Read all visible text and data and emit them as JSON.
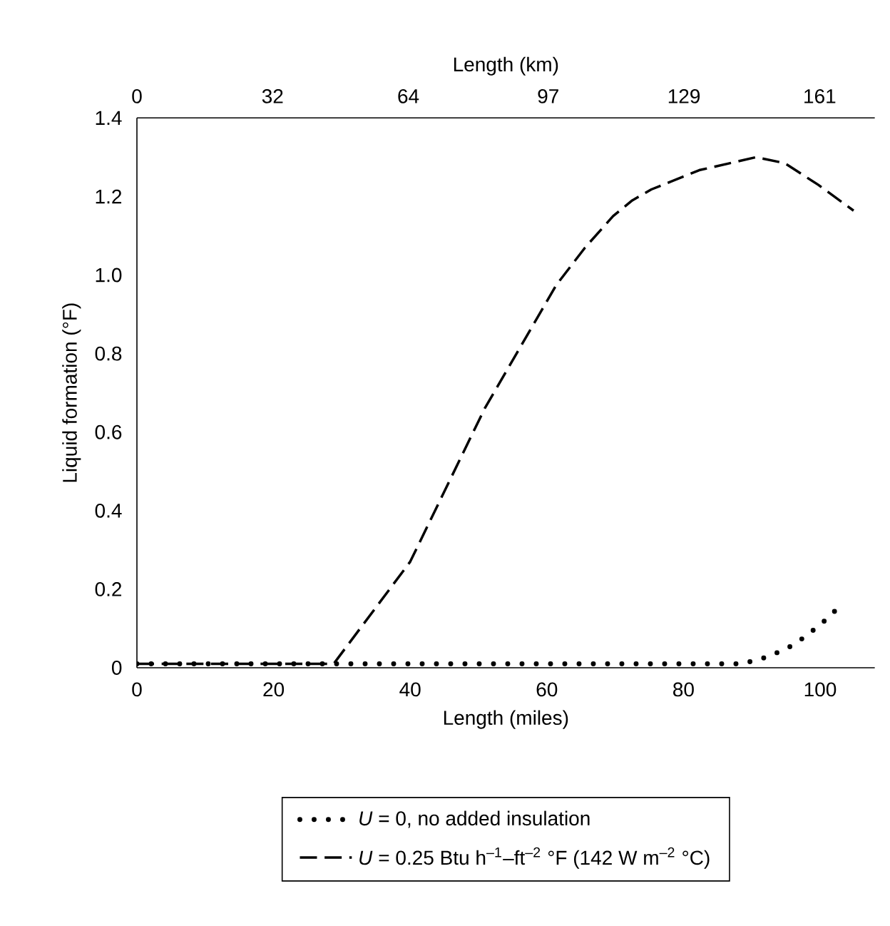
{
  "chart_data": {
    "type": "line",
    "xlabel": "Length (miles)",
    "x2label": "Length (km)",
    "ylabel": "Liquid formation (°F)",
    "xlim": [
      0,
      108
    ],
    "xticks": [
      0,
      20,
      40,
      60,
      80,
      100
    ],
    "x2lim": [
      0,
      174
    ],
    "x2ticks": [
      0,
      32,
      64,
      97,
      129,
      161
    ],
    "ylim": [
      0,
      1.4
    ],
    "yticks": [
      0,
      0.2,
      0.4,
      0.6,
      0.8,
      {
        "value": 1,
        "label": "1.0"
      },
      1.2,
      1.4
    ],
    "legend": "bottom",
    "marker": "none",
    "grid": false,
    "series": [
      {
        "name": "*U* = 0, no added insulation",
        "color": "#000000",
        "line_style": "dotted",
        "x": [
          0,
          10,
          20,
          30,
          40,
          50,
          60,
          70,
          80,
          88.5,
          91.6,
          95.1,
          97.9,
          100.7,
          103.1
        ],
        "values": [
          0.01,
          0.01,
          0.01,
          0.01,
          0.01,
          0.01,
          0.01,
          0.01,
          0.01,
          0.01,
          0.024,
          0.048,
          0.08,
          0.12,
          0.16
        ]
      },
      {
        "name": "*U* = 0.25 Btu h$^{–1}$–ft$^{–2}$ °F (142 W m$^{–2}$ °C)",
        "color": "#000000",
        "line_style": "dashed",
        "x": [
          0,
          10,
          20,
          28.8,
          40,
          50.9,
          61.4,
          65.6,
          69.7,
          72.5,
          75.3,
          82.3,
          90.6,
          94.8,
          99.7,
          104.9
        ],
        "values": [
          0.01,
          0.01,
          0.01,
          0.01,
          0.27,
          0.66,
          0.975,
          1.07,
          1.15,
          1.19,
          1.218,
          1.267,
          1.3,
          1.285,
          1.23,
          1.164
        ]
      }
    ]
  }
}
